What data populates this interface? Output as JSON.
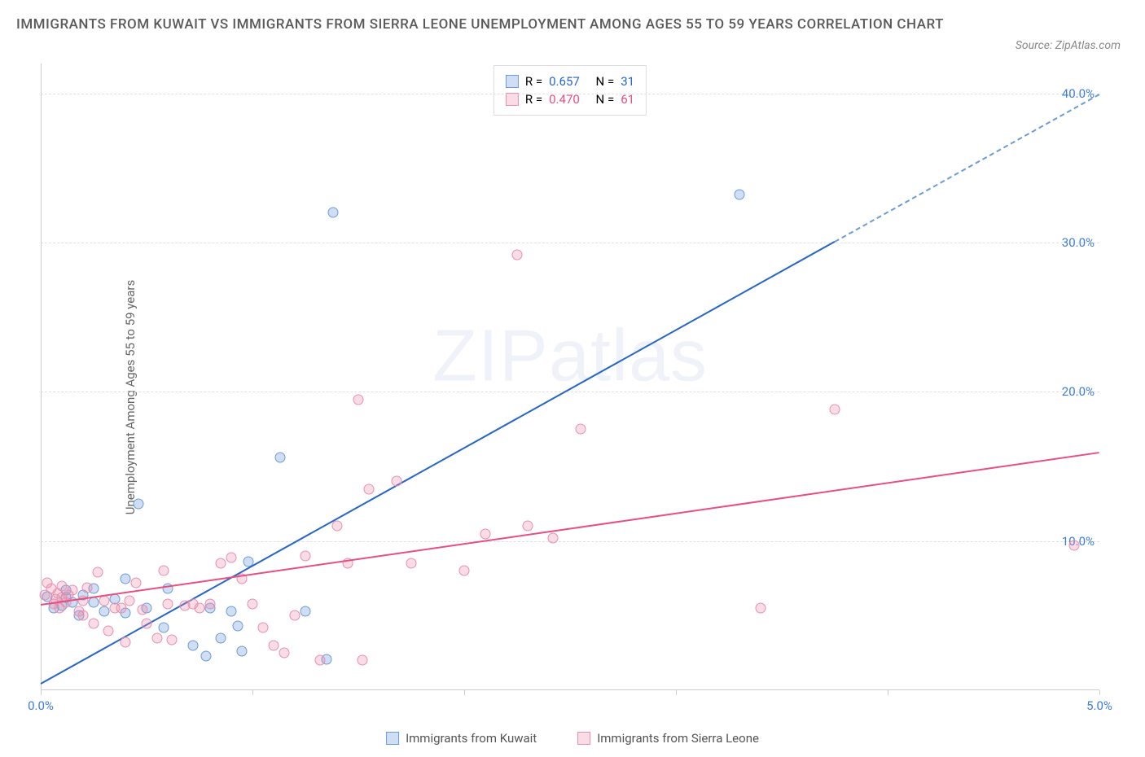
{
  "title": "IMMIGRANTS FROM KUWAIT VS IMMIGRANTS FROM SIERRA LEONE UNEMPLOYMENT AMONG AGES 55 TO 59 YEARS CORRELATION CHART",
  "source": "Source: ZipAtlas.com",
  "yaxis_label": "Unemployment Among Ages 55 to 59 years",
  "watermark": "ZIPatlas",
  "chart": {
    "type": "scatter",
    "xlim": [
      0,
      5
    ],
    "ylim": [
      0,
      42
    ],
    "x_ticks": [
      0,
      1,
      2,
      3,
      4,
      5
    ],
    "x_tick_labels": [
      "0.0%",
      "",
      "",
      "",
      "",
      "5.0%"
    ],
    "x_tick_label_color": "#3d7ddb",
    "y_ticks": [
      10,
      20,
      30,
      40
    ],
    "y_tick_labels": [
      "10.0%",
      "20.0%",
      "30.0%",
      "40.0%"
    ],
    "y_tick_label_color": "#3d7ddb",
    "grid_color": "#e0e0e0",
    "background_color": "#ffffff",
    "series": [
      {
        "name": "Immigrants from Kuwait",
        "marker_fill": "rgba(120,160,220,0.35)",
        "marker_stroke": "#6b9bd8",
        "trend_color": "#2766c8",
        "trend_dashed_color": "#6b9bd8",
        "R": "0.657",
        "N": "31",
        "trend": {
          "x0": 0,
          "y0": 0.5,
          "x1": 5,
          "y1": 40
        },
        "trend_solid_until_x": 3.75,
        "points": [
          [
            0.03,
            6.3
          ],
          [
            0.06,
            5.5
          ],
          [
            0.1,
            5.7
          ],
          [
            0.12,
            6.2
          ],
          [
            0.15,
            5.9
          ],
          [
            0.12,
            6.7
          ],
          [
            0.18,
            5.0
          ],
          [
            0.2,
            6.4
          ],
          [
            0.25,
            6.8
          ],
          [
            0.25,
            5.9
          ],
          [
            0.3,
            5.3
          ],
          [
            0.35,
            6.1
          ],
          [
            0.4,
            7.5
          ],
          [
            0.4,
            5.2
          ],
          [
            0.46,
            12.5
          ],
          [
            0.5,
            5.5
          ],
          [
            0.58,
            4.2
          ],
          [
            0.6,
            6.8
          ],
          [
            0.72,
            3.0
          ],
          [
            0.78,
            2.3
          ],
          [
            0.8,
            5.5
          ],
          [
            0.85,
            3.5
          ],
          [
            0.9,
            5.3
          ],
          [
            0.93,
            4.3
          ],
          [
            0.95,
            2.6
          ],
          [
            0.98,
            8.6
          ],
          [
            1.13,
            15.6
          ],
          [
            1.25,
            5.3
          ],
          [
            1.35,
            2.1
          ],
          [
            1.38,
            32.0
          ],
          [
            3.3,
            33.2
          ]
        ]
      },
      {
        "name": "Immigrants from Sierra Leone",
        "marker_fill": "rgba(235,140,170,0.3)",
        "marker_stroke": "#e690ad",
        "trend_color": "#e84f7f",
        "R": "0.470",
        "N": "61",
        "trend": {
          "x0": 0,
          "y0": 5.8,
          "x1": 5,
          "y1": 16
        },
        "points": [
          [
            0.02,
            6.4
          ],
          [
            0.03,
            7.2
          ],
          [
            0.05,
            6.8
          ],
          [
            0.06,
            5.8
          ],
          [
            0.07,
            6.1
          ],
          [
            0.08,
            6.5
          ],
          [
            0.09,
            5.5
          ],
          [
            0.1,
            6.2
          ],
          [
            0.1,
            7.0
          ],
          [
            0.12,
            5.9
          ],
          [
            0.13,
            6.4
          ],
          [
            0.15,
            6.7
          ],
          [
            0.18,
            5.3
          ],
          [
            0.2,
            6.0
          ],
          [
            0.2,
            5.0
          ],
          [
            0.22,
            6.9
          ],
          [
            0.25,
            4.5
          ],
          [
            0.27,
            7.9
          ],
          [
            0.3,
            6.0
          ],
          [
            0.32,
            4.0
          ],
          [
            0.35,
            5.5
          ],
          [
            0.38,
            5.5
          ],
          [
            0.4,
            3.2
          ],
          [
            0.42,
            6.0
          ],
          [
            0.45,
            7.2
          ],
          [
            0.48,
            5.4
          ],
          [
            0.5,
            4.5
          ],
          [
            0.55,
            3.5
          ],
          [
            0.58,
            8.0
          ],
          [
            0.6,
            5.8
          ],
          [
            0.62,
            3.4
          ],
          [
            0.68,
            5.7
          ],
          [
            0.72,
            5.8
          ],
          [
            0.75,
            5.5
          ],
          [
            0.8,
            5.8
          ],
          [
            0.85,
            8.5
          ],
          [
            0.9,
            8.9
          ],
          [
            0.95,
            7.5
          ],
          [
            1.0,
            5.8
          ],
          [
            1.05,
            4.2
          ],
          [
            1.1,
            3.0
          ],
          [
            1.15,
            2.5
          ],
          [
            1.2,
            5.0
          ],
          [
            1.25,
            9.0
          ],
          [
            1.32,
            2.0
          ],
          [
            1.4,
            11.0
          ],
          [
            1.45,
            8.5
          ],
          [
            1.5,
            19.5
          ],
          [
            1.52,
            2.0
          ],
          [
            1.55,
            13.5
          ],
          [
            1.68,
            14
          ],
          [
            1.75,
            8.5
          ],
          [
            2.0,
            8.0
          ],
          [
            2.1,
            10.5
          ],
          [
            2.25,
            29.2
          ],
          [
            2.3,
            11.0
          ],
          [
            2.42,
            10.2
          ],
          [
            2.55,
            17.5
          ],
          [
            3.4,
            5.5
          ],
          [
            3.75,
            18.8
          ],
          [
            4.88,
            9.7
          ]
        ]
      }
    ],
    "legend_box": {
      "label_R": "R =",
      "label_N": "N ="
    },
    "bottom_legend": {
      "items": [
        "Immigrants from Kuwait",
        "Immigrants from Sierra Leone"
      ]
    }
  }
}
